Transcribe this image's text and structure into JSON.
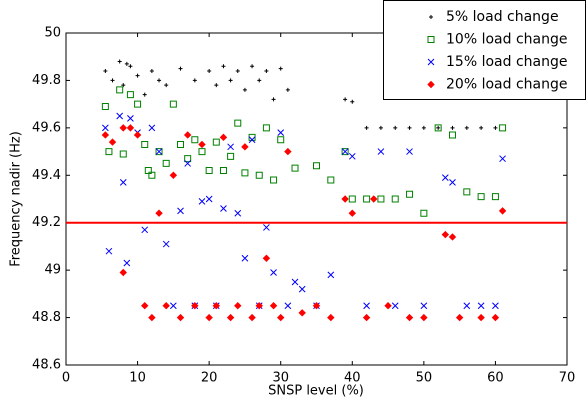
{
  "chart_data": {
    "type": "scatter",
    "x_label": "SNSP level (%)",
    "y_label": "Frequency nadir (Hz)",
    "xlim": [
      0,
      70
    ],
    "xticks": [
      0,
      10,
      20,
      30,
      40,
      50,
      60,
      70
    ],
    "ylim": [
      48.6,
      50
    ],
    "yticks": [
      48.6,
      48.8,
      49,
      49.2,
      49.4,
      49.6,
      49.8,
      50
    ],
    "reference_line": {
      "value": 49.2,
      "color": "#ff0000"
    },
    "legend_position": "upper right",
    "series": [
      {
        "name": "5% load change",
        "color": "#000000",
        "marker": "plus",
        "x": [
          5.5,
          6.5,
          7.5,
          8,
          8.5,
          9,
          10,
          11,
          12,
          13,
          14,
          16,
          18,
          20,
          21,
          22,
          23,
          24,
          25,
          26,
          27,
          28,
          29,
          30,
          31,
          39,
          40,
          42,
          44,
          46,
          48,
          50,
          52,
          54,
          56,
          58,
          60
        ],
        "y": [
          49.84,
          49.8,
          49.88,
          49.78,
          49.87,
          49.86,
          49.82,
          49.74,
          49.84,
          49.8,
          49.78,
          49.85,
          49.8,
          49.84,
          49.78,
          49.86,
          49.8,
          49.84,
          49.76,
          49.86,
          49.8,
          49.84,
          49.72,
          49.85,
          49.76,
          49.72,
          49.71,
          49.6,
          49.6,
          49.6,
          49.6,
          49.6,
          49.6,
          49.6,
          49.6,
          49.6,
          49.6
        ]
      },
      {
        "name": "10% load change",
        "color": "#008000",
        "marker": "square",
        "x": [
          5.5,
          6,
          7.5,
          8,
          9,
          10,
          11,
          11.5,
          12,
          13,
          14,
          15,
          16,
          17,
          18,
          19,
          20,
          21,
          22,
          23,
          24,
          25,
          26,
          27,
          28,
          29,
          30,
          32,
          35,
          37,
          39,
          40,
          42,
          44,
          46,
          48,
          50,
          52,
          54,
          56,
          58,
          60,
          61
        ],
        "y": [
          49.69,
          49.5,
          49.76,
          49.49,
          49.74,
          49.7,
          49.53,
          49.42,
          49.4,
          49.5,
          49.45,
          49.7,
          49.53,
          49.47,
          49.55,
          49.5,
          49.42,
          49.54,
          49.42,
          49.48,
          49.62,
          49.41,
          49.56,
          49.4,
          49.6,
          49.38,
          49.55,
          49.43,
          49.44,
          49.38,
          49.5,
          49.3,
          49.3,
          49.3,
          49.3,
          49.32,
          49.24,
          49.6,
          49.57,
          49.33,
          49.31,
          49.31,
          49.6
        ]
      },
      {
        "name": "15% load change",
        "color": "#0000ff",
        "marker": "x",
        "x": [
          5.5,
          6,
          7.5,
          8,
          8.5,
          9,
          10,
          11,
          12,
          13,
          14,
          15,
          16,
          17,
          18,
          19,
          20,
          21,
          22,
          23,
          24,
          25,
          26,
          27,
          28,
          29,
          30,
          31,
          32,
          33,
          35,
          37,
          39,
          40,
          42,
          44,
          46,
          48,
          50,
          53,
          54,
          56,
          58,
          60,
          61
        ],
        "y": [
          49.6,
          49.08,
          49.65,
          49.37,
          49.03,
          49.64,
          49.58,
          49.17,
          49.6,
          49.5,
          49.11,
          48.85,
          49.25,
          49.45,
          48.85,
          49.29,
          49.3,
          48.85,
          49.26,
          49.52,
          49.24,
          49.05,
          49.55,
          48.85,
          49.18,
          48.99,
          49.58,
          48.85,
          48.95,
          48.92,
          48.85,
          48.98,
          49.5,
          49.48,
          48.85,
          49.5,
          48.85,
          49.5,
          48.85,
          49.39,
          49.37,
          48.85,
          48.85,
          48.85,
          49.47
        ]
      },
      {
        "name": "20% load change",
        "color": "#ff0000",
        "marker": "diamond",
        "x": [
          5.5,
          6.5,
          8,
          8,
          9,
          10,
          11,
          12,
          13,
          14,
          15,
          16,
          17,
          18,
          19,
          20,
          21,
          22,
          23,
          24,
          25,
          26,
          27,
          28,
          29,
          30,
          31,
          33,
          35,
          37,
          39,
          40,
          42,
          43,
          45,
          48,
          50,
          53,
          54,
          55,
          58,
          60,
          61
        ],
        "y": [
          49.57,
          49.54,
          49.6,
          48.99,
          49.6,
          49.57,
          48.85,
          48.8,
          49.24,
          48.85,
          49.4,
          48.8,
          49.57,
          48.85,
          49.53,
          48.8,
          48.85,
          49.56,
          48.8,
          48.85,
          49.52,
          48.8,
          48.85,
          49.05,
          48.85,
          48.8,
          49.5,
          48.82,
          48.85,
          48.8,
          49.3,
          49.24,
          48.8,
          49.3,
          48.85,
          48.8,
          48.8,
          49.15,
          49.14,
          48.8,
          48.8,
          48.8,
          49.25
        ]
      }
    ]
  }
}
